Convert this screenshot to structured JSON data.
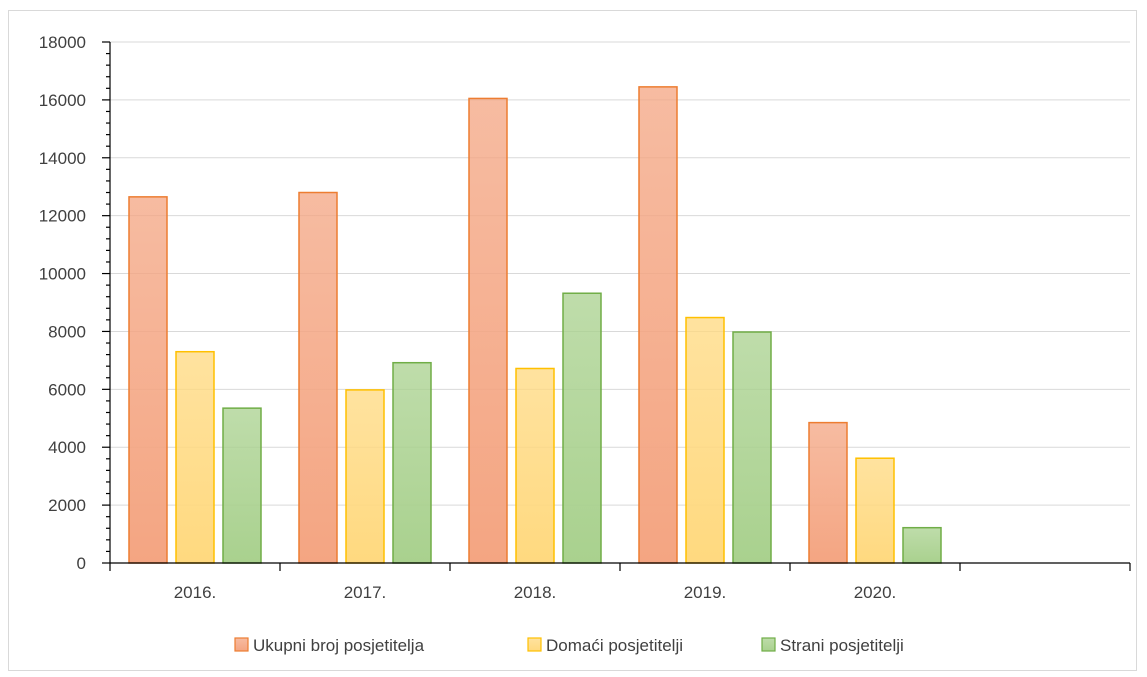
{
  "chart_data": {
    "type": "bar",
    "categories": [
      "2016.",
      "2017.",
      "2018.",
      "2019.",
      "2020.",
      ""
    ],
    "series": [
      {
        "name": "Ukupni broj posjetitelja",
        "values": [
          12650,
          12800,
          16050,
          16450,
          4850,
          null
        ],
        "color": "#f4a582",
        "stroke": "#ed7d31"
      },
      {
        "name": "Domaći posjetitelji",
        "values": [
          7300,
          5980,
          6720,
          8480,
          3620,
          null
        ],
        "color": "#ffd97f",
        "stroke": "#ffc000"
      },
      {
        "name": "Strani posjetitelji",
        "values": [
          5350,
          6920,
          9320,
          7980,
          1220,
          null
        ],
        "color": "#a9d18e",
        "stroke": "#70ad47"
      }
    ],
    "ylim": [
      0,
      18000
    ],
    "yticks": [
      "0",
      "2000",
      "4000",
      "6000",
      "8000",
      "10000",
      "12000",
      "14000",
      "16000",
      "18000"
    ],
    "grid": true,
    "legend_position": "bottom"
  }
}
